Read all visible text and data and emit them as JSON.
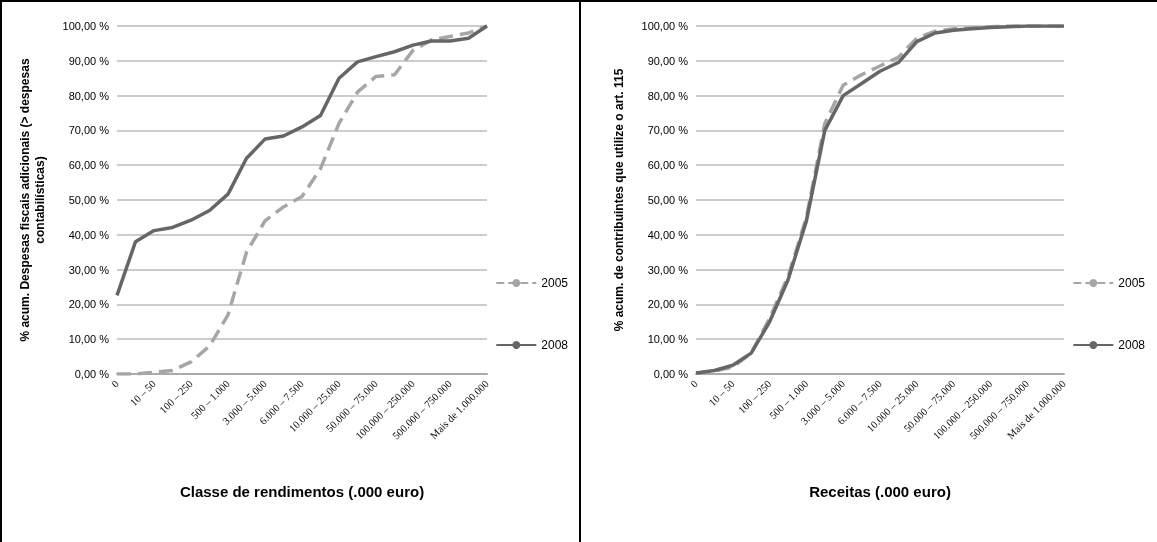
{
  "chart_data": [
    {
      "type": "line",
      "xlabel": "Classe de rendimentos (.000 euro)",
      "ylabel": "% acum. Despesas fiscais adicionais (> despesas\ncontabilísticas)",
      "categories": [
        "0",
        null,
        "10 – 50",
        null,
        "100 – 250",
        null,
        "500 – 1.000",
        null,
        "3.000 – 5.000",
        null,
        "6.000 – 7.500",
        null,
        "10.000 – 25.000",
        null,
        "50.000 – 75.000",
        null,
        "100.000 – 250.000",
        null,
        "500.000 – 750.000",
        null,
        "Mais de 1.000.000"
      ],
      "series": [
        {
          "name": "2005",
          "color": "#a6a6a6",
          "line_style": "dashed",
          "values": [
            0,
            0,
            0.5,
            1,
            3.5,
            8,
            17,
            35,
            44,
            48,
            51,
            59,
            72,
            81,
            85.5,
            86,
            93,
            96,
            97,
            98,
            100
          ]
        },
        {
          "name": "2008",
          "color": "#666666",
          "line_style": "solid",
          "values": [
            22.6,
            38,
            41.2,
            42.1,
            44.2,
            47,
            51.7,
            62,
            67.5,
            68.4,
            71,
            74.3,
            85,
            89.7,
            91.2,
            92.6,
            94.5,
            95.7,
            95.7,
            96.5,
            100
          ]
        }
      ],
      "ylim": [
        0,
        100
      ],
      "yticks": [
        {
          "value": 0,
          "label": "0,00 %"
        },
        {
          "value": 10,
          "label": "10,00 %"
        },
        {
          "value": 20,
          "label": "20,00 %"
        },
        {
          "value": 30,
          "label": "30,00 %"
        },
        {
          "value": 40,
          "label": "40,00 %"
        },
        {
          "value": 50,
          "label": "50,00 %"
        },
        {
          "value": 60,
          "label": "60,00 %"
        },
        {
          "value": 70,
          "label": "70,00 %"
        },
        {
          "value": 80,
          "label": "80,00 %"
        },
        {
          "value": 90,
          "label": "90,00 %"
        },
        {
          "value": 100,
          "label": "100,00 %"
        }
      ],
      "grid": "y",
      "legend": "right",
      "marker": "none"
    },
    {
      "type": "line",
      "xlabel": "Receitas (.000 euro)",
      "ylabel": "% acum. de contribuintes que utilize o art. 115",
      "categories": [
        "0",
        null,
        "10 – 50",
        null,
        "100 – 250",
        null,
        "500 – 1.000",
        null,
        "3.000 – 5.000",
        null,
        "6.000 – 7.500",
        null,
        "10.000 – 25.000",
        null,
        "50.000 – 75.000",
        null,
        "100.000 – 250.000",
        null,
        "500.000 – 750.000",
        null,
        "Mais de 1.000.000"
      ],
      "series": [
        {
          "name": "2005",
          "color": "#a6a6a6",
          "line_style": "dashed",
          "values": [
            0.2,
            0.8,
            2,
            6,
            16,
            28,
            45,
            72,
            83,
            86,
            88.5,
            91,
            96.5,
            98.5,
            99.2,
            99.5,
            99.8,
            100,
            100,
            100,
            100
          ]
        },
        {
          "name": "2008",
          "color": "#666666",
          "line_style": "solid",
          "values": [
            0.3,
            1,
            2.5,
            6,
            15,
            27,
            44,
            70,
            80,
            83.5,
            87,
            89.5,
            95.5,
            98,
            98.8,
            99.2,
            99.6,
            99.8,
            100,
            100,
            100
          ]
        }
      ],
      "ylim": [
        0,
        100
      ],
      "yticks": [
        {
          "value": 0,
          "label": "0,00 %"
        },
        {
          "value": 10,
          "label": "10,00 %"
        },
        {
          "value": 20,
          "label": "20,00 %"
        },
        {
          "value": 30,
          "label": "30,00 %"
        },
        {
          "value": 40,
          "label": "40,00 %"
        },
        {
          "value": 50,
          "label": "50,00 %"
        },
        {
          "value": 60,
          "label": "60,00 %"
        },
        {
          "value": 70,
          "label": "70,00 %"
        },
        {
          "value": 80,
          "label": "80,00 %"
        },
        {
          "value": 90,
          "label": "90,00 %"
        },
        {
          "value": 100,
          "label": "100,00 %"
        }
      ],
      "grid": "y",
      "legend": "right",
      "marker": "none"
    }
  ]
}
